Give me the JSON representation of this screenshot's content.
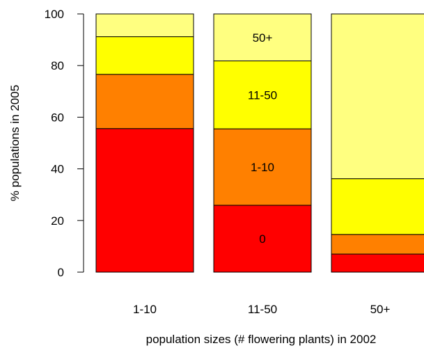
{
  "chart_data": {
    "type": "bar",
    "stacked": true,
    "categories": [
      "1-10",
      "11-50",
      "50+"
    ],
    "series": [
      {
        "name": "0",
        "color": "#ff0000",
        "values": [
          55.6,
          25.9,
          7.0
        ]
      },
      {
        "name": "1-10",
        "color": "#ff8000",
        "values": [
          21.0,
          29.6,
          7.6
        ]
      },
      {
        "name": "11-50",
        "color": "#ffff00",
        "values": [
          14.6,
          26.3,
          21.6
        ]
      },
      {
        "name": "50+",
        "color": "#ffff80",
        "values": [
          8.8,
          18.2,
          63.8
        ]
      }
    ],
    "segment_labels_category": "11-50",
    "xlabel": "population sizes (# flowering plants) in 2002",
    "ylabel": "% populations in 2005",
    "ylim": [
      0,
      100
    ],
    "yticks": [
      0,
      20,
      40,
      60,
      80,
      100
    ],
    "grid": false,
    "legend": "none"
  }
}
